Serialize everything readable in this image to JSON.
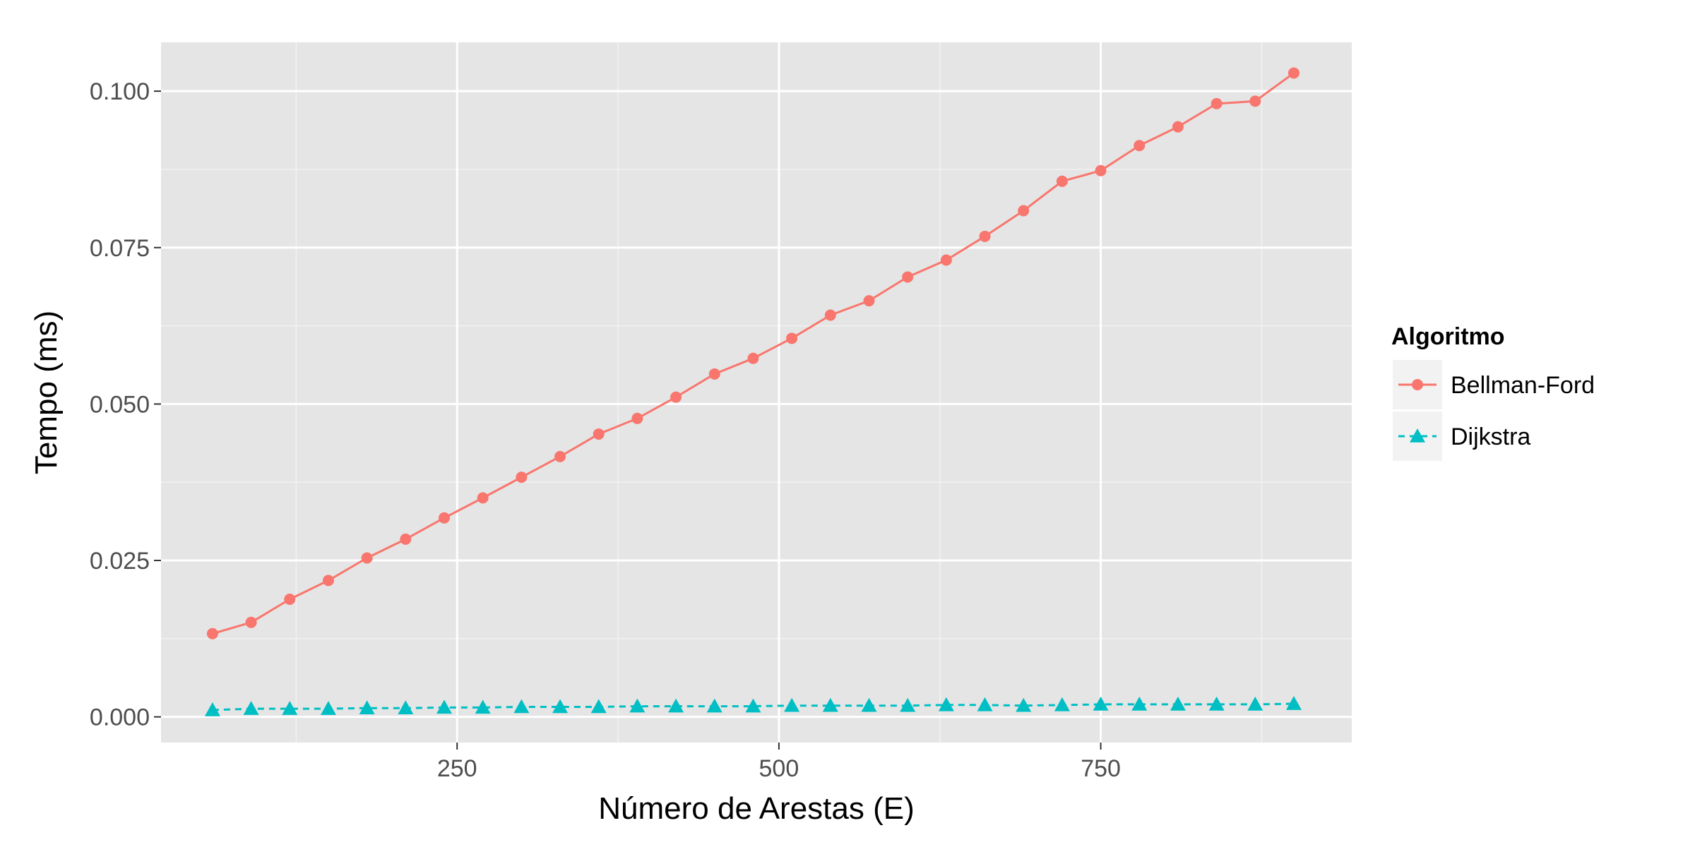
{
  "chart_data": {
    "type": "line",
    "title": "",
    "xlabel": "Número de Arestas (E)",
    "ylabel": "Tempo (ms)",
    "xlim": [
      20,
      945
    ],
    "ylim": [
      -0.0041,
      0.1078
    ],
    "x_ticks": [
      250,
      500,
      750
    ],
    "x_tick_labels": [
      "250",
      "500",
      "750"
    ],
    "y_ticks": [
      0.0,
      0.025,
      0.05,
      0.075,
      0.1
    ],
    "y_tick_labels": [
      "0.000",
      "0.025",
      "0.050",
      "0.075",
      "0.100"
    ],
    "grid": true,
    "legend": {
      "title": "Algoritmo",
      "position": "right"
    },
    "x": [
      60,
      90,
      120,
      150,
      180,
      210,
      240,
      270,
      300,
      330,
      360,
      390,
      420,
      450,
      480,
      510,
      540,
      570,
      600,
      630,
      660,
      690,
      720,
      750,
      780,
      810,
      840,
      870,
      900
    ],
    "series": [
      {
        "name": "Bellman-Ford",
        "color": "#F8766D",
        "marker": "circle",
        "line_style": "solid",
        "values": [
          0.0133,
          0.0151,
          0.0188,
          0.0218,
          0.0254,
          0.0284,
          0.0318,
          0.035,
          0.0383,
          0.0416,
          0.0452,
          0.0477,
          0.0511,
          0.0548,
          0.0573,
          0.0605,
          0.0642,
          0.0665,
          0.0703,
          0.073,
          0.0768,
          0.0809,
          0.0856,
          0.0873,
          0.0913,
          0.0943,
          0.098,
          0.0984,
          0.1029
        ]
      },
      {
        "name": "Dijkstra",
        "color": "#00BFC4",
        "marker": "triangle",
        "line_style": "dashed",
        "values": [
          0.0011,
          0.0013,
          0.0013,
          0.0013,
          0.0014,
          0.0014,
          0.0015,
          0.0015,
          0.0016,
          0.0016,
          0.0016,
          0.0017,
          0.0017,
          0.0017,
          0.0017,
          0.0018,
          0.0018,
          0.0018,
          0.0018,
          0.0019,
          0.0019,
          0.0018,
          0.0019,
          0.002,
          0.002,
          0.002,
          0.002,
          0.002,
          0.0021
        ]
      }
    ]
  }
}
